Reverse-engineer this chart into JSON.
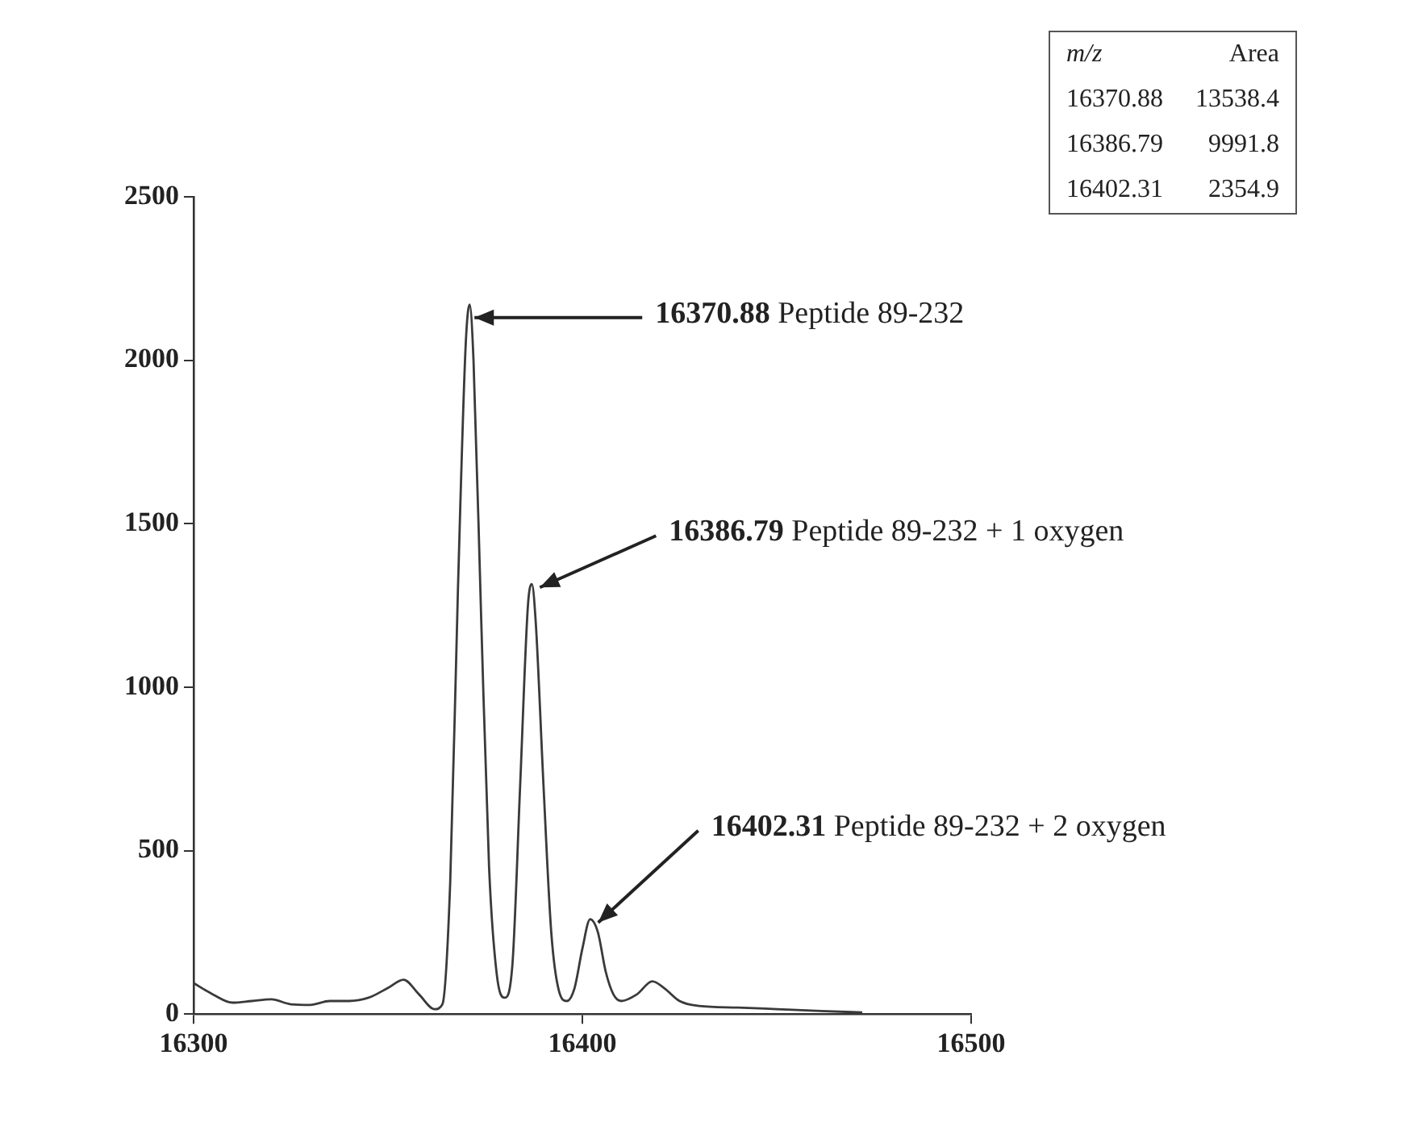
{
  "chart_data": {
    "type": "line",
    "xlim": [
      16300,
      16500
    ],
    "xticks": [
      16300,
      16400,
      16500
    ],
    "ylim": [
      0,
      2500
    ],
    "yticks": [
      0,
      500,
      1000,
      1500,
      2000,
      2500
    ],
    "marker": "none",
    "line_style": "solid",
    "legend": false,
    "series": [
      {
        "color": "#3a3a3a",
        "x": [
          16300,
          16305,
          16310,
          16315,
          16320,
          16325,
          16330,
          16335,
          16340,
          16345,
          16350,
          16354,
          16358,
          16362,
          16364,
          16366,
          16368,
          16370,
          16371,
          16372,
          16374,
          16376,
          16378,
          16380,
          16382,
          16384,
          16386,
          16387,
          16388,
          16390,
          16392,
          16394,
          16396,
          16398,
          16400,
          16402,
          16404,
          16406,
          16408,
          16410,
          16414,
          16418,
          16421,
          16425,
          16430,
          16440,
          16450,
          16460,
          16472
        ],
        "values": [
          95,
          60,
          35,
          40,
          45,
          30,
          28,
          40,
          40,
          50,
          80,
          105,
          60,
          15,
          30,
          400,
          1300,
          2050,
          2170,
          2000,
          1200,
          450,
          120,
          50,
          150,
          700,
          1250,
          1315,
          1200,
          700,
          250,
          70,
          40,
          80,
          200,
          290,
          250,
          130,
          60,
          40,
          60,
          100,
          80,
          40,
          25,
          20,
          15,
          10,
          5
        ]
      }
    ],
    "annotations": [
      {
        "text": "16370.88 Peptide 89-232",
        "x": 16371,
        "y": 2170
      },
      {
        "text": "16386.79 Peptide 89-232 + 1 oxygen",
        "x": 16387,
        "y": 1315
      },
      {
        "text": "16402.31 Peptide 89-232 + 2 oxygen",
        "x": 16402,
        "y": 290
      },
      "m/z",
      "Area",
      "16370.88",
      "13538.4",
      "16386.79",
      "9991.8",
      "16402.31",
      "2354.9"
    ]
  }
}
